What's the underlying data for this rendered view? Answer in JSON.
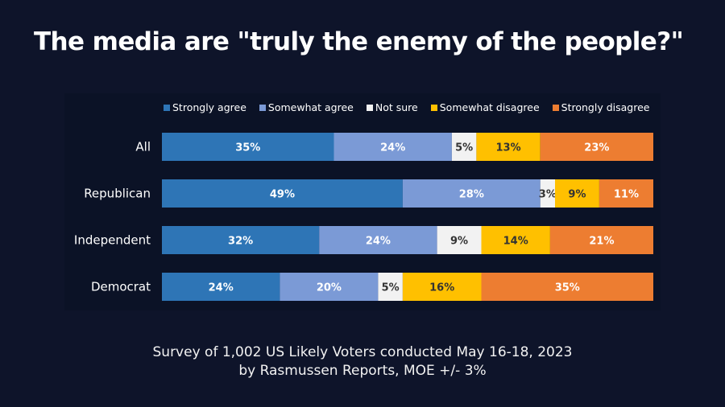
{
  "title": "The media are \"truly the enemy of the people?\"",
  "chart_data": {
    "type": "bar",
    "orientation": "horizontal",
    "stacked": true,
    "title": "The media are \"truly the enemy of the people?\"",
    "xlabel": "",
    "ylabel": "",
    "xlim": [
      0,
      100
    ],
    "grid": false,
    "legend_position": "top",
    "categories": [
      "All",
      "Republican",
      "Independent",
      "Democrat"
    ],
    "series": [
      {
        "name": "Strongly agree",
        "color": "#2e75b6",
        "label_color": "#ffffff",
        "values": [
          35,
          49,
          32,
          24
        ]
      },
      {
        "name": "Somewhat agree",
        "color": "#7b9ad6",
        "label_color": "#ffffff",
        "values": [
          24,
          28,
          24,
          20
        ]
      },
      {
        "name": "Not sure",
        "color": "#f2f2f2",
        "label_color": "#333333",
        "values": [
          5,
          3,
          9,
          5
        ]
      },
      {
        "name": "Somewhat disagree",
        "color": "#ffc000",
        "label_color": "#333333",
        "values": [
          13,
          9,
          14,
          16
        ]
      },
      {
        "name": "Strongly disagree",
        "color": "#ed7d31",
        "label_color": "#ffffff",
        "values": [
          23,
          11,
          21,
          35
        ]
      }
    ]
  },
  "footer": {
    "line1": "Survey of 1,002 US Likely Voters conducted May 16-18, 2023",
    "line2": "by Rasmussen Reports, MOE +/- 3%"
  }
}
